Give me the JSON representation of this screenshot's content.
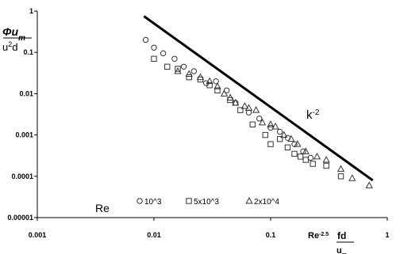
{
  "chart_data": {
    "type": "scatter",
    "x_scale": "log",
    "y_scale": "log",
    "xlim": [
      0.001,
      1
    ],
    "ylim": [
      1e-05,
      1
    ],
    "x_tick_labels": [
      "0.001",
      "0.01",
      "0.1",
      "1"
    ],
    "y_tick_labels": [
      "1",
      "0.1",
      "0.01",
      "0.001",
      "0.0001",
      "0.00001"
    ],
    "ylabel_numerator": "Φu",
    "ylabel_numerator_sub": "m",
    "ylabel_denominator": "u",
    "ylabel_denominator_sup": "2",
    "ylabel_denominator_tail": "d",
    "xlabel_main": "Re",
    "xlabel_sup": "-2.5",
    "xlabel_numerator": "fd",
    "xlabel_denominator": "u",
    "xlabel_denominator_sub": "m",
    "legend_title": "Re",
    "grid": false,
    "legend_position": "bottom-left",
    "series": [
      {
        "name": "10^3",
        "marker": "circle",
        "points": [
          [
            0.0085,
            0.2
          ],
          [
            0.01,
            0.13
          ],
          [
            0.012,
            0.095
          ],
          [
            0.015,
            0.07
          ],
          [
            0.018,
            0.045
          ],
          [
            0.022,
            0.035
          ],
          [
            0.028,
            0.018
          ],
          [
            0.034,
            0.02
          ],
          [
            0.042,
            0.012
          ],
          [
            0.05,
            0.006
          ],
          [
            0.065,
            0.0035
          ],
          [
            0.08,
            0.0025
          ],
          [
            0.1,
            0.0015
          ],
          [
            0.12,
            0.0012
          ],
          [
            0.14,
            0.00085
          ],
          [
            0.16,
            0.0006
          ],
          [
            0.19,
            0.0004
          ],
          [
            0.22,
            0.00028
          ]
        ]
      },
      {
        "name": "5x10^3",
        "marker": "square",
        "points": [
          [
            0.01,
            0.07
          ],
          [
            0.013,
            0.045
          ],
          [
            0.016,
            0.04
          ],
          [
            0.02,
            0.025
          ],
          [
            0.025,
            0.022
          ],
          [
            0.03,
            0.016
          ],
          [
            0.035,
            0.012
          ],
          [
            0.045,
            0.007
          ],
          [
            0.055,
            0.004
          ],
          [
            0.07,
            0.0018
          ],
          [
            0.09,
            0.001
          ],
          [
            0.1,
            0.0006
          ],
          [
            0.12,
            0.0008
          ],
          [
            0.14,
            0.0005
          ],
          [
            0.16,
            0.00035
          ],
          [
            0.18,
            0.0003
          ],
          [
            0.2,
            0.00025
          ],
          [
            0.23,
            0.0002
          ],
          [
            0.3,
            0.00018
          ],
          [
            0.4,
            0.0001
          ]
        ]
      },
      {
        "name": "2x10^4",
        "marker": "triangle",
        "points": [
          [
            0.016,
            0.035
          ],
          [
            0.02,
            0.03
          ],
          [
            0.025,
            0.025
          ],
          [
            0.03,
            0.02
          ],
          [
            0.035,
            0.015
          ],
          [
            0.04,
            0.01
          ],
          [
            0.045,
            0.008
          ],
          [
            0.05,
            0.006
          ],
          [
            0.06,
            0.005
          ],
          [
            0.065,
            0.0045
          ],
          [
            0.075,
            0.004
          ],
          [
            0.085,
            0.002
          ],
          [
            0.1,
            0.0018
          ],
          [
            0.11,
            0.0016
          ],
          [
            0.13,
            0.001
          ],
          [
            0.15,
            0.0008
          ],
          [
            0.17,
            0.0006
          ],
          [
            0.2,
            0.0004
          ],
          [
            0.25,
            0.0003
          ],
          [
            0.3,
            0.00025
          ],
          [
            0.4,
            0.00015
          ],
          [
            0.5,
            9e-05
          ],
          [
            0.7,
            6e-05
          ]
        ]
      }
    ],
    "reference_line": {
      "label": "k",
      "label_sup": "-2",
      "points": [
        [
          0.0082,
          0.75
        ],
        [
          0.75,
          8e-05
        ]
      ]
    }
  }
}
